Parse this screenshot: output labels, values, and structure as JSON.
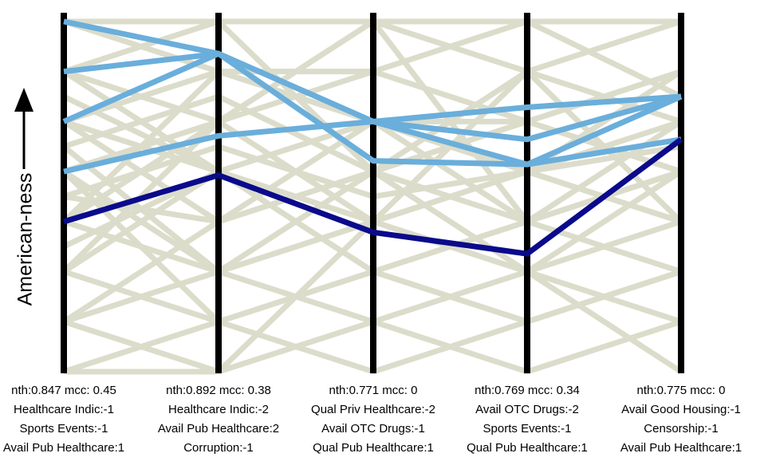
{
  "chart_data": {
    "type": "parallel-coordinates",
    "ylabel": "American-ness",
    "ylabel_arrow": "up-arrow",
    "axes": [
      {
        "stat": "nth:0.847 mcc: 0.45",
        "rules": [
          "Healthcare Indic:-1",
          "Sports Events:-1",
          "Avail Pub Healthcare:1"
        ]
      },
      {
        "stat": "nth:0.892 mcc: 0.38",
        "rules": [
          "Healthcare Indic:-2",
          "Avail Pub Healthcare:2",
          "Corruption:-1"
        ]
      },
      {
        "stat": "nth:0.771 mcc: 0",
        "rules": [
          "Qual Priv Healthcare:-2",
          "Avail OTC Drugs:-1",
          "Qual Pub Healthcare:1"
        ]
      },
      {
        "stat": "nth:0.769 mcc: 0.34",
        "rules": [
          "Avail OTC Drugs:-2",
          "Sports Events:-1",
          "Qual Pub Healthcare:1"
        ]
      },
      {
        "stat": "nth:0.775 mcc: 0",
        "rules": [
          "Avail Good Housing:-1",
          "Censorship:-1",
          "Avail Pub Healthcare:1"
        ]
      }
    ],
    "y_range": [
      0,
      1
    ],
    "highlight_series": [
      {
        "color": "#0a0a8c",
        "values": [
          0.42,
          0.55,
          0.39,
          0.33,
          0.65
        ]
      },
      {
        "color": "#6aaedb",
        "values": [
          0.56,
          0.66,
          0.7,
          0.58,
          0.77
        ]
      },
      {
        "color": "#6aaedb",
        "values": [
          0.7,
          0.89,
          0.7,
          0.65,
          0.77
        ]
      },
      {
        "color": "#6aaedb",
        "values": [
          0.84,
          0.89,
          0.59,
          0.58,
          0.65
        ]
      },
      {
        "color": "#6aaedb",
        "values": [
          0.98,
          0.89,
          0.7,
          0.74,
          0.77
        ]
      }
    ],
    "background_series": [
      {
        "values": [
          0.98,
          0.98,
          0.98,
          0.98,
          0.98
        ]
      },
      {
        "values": [
          0.98,
          0.84,
          0.7,
          0.56,
          0.42
        ]
      },
      {
        "values": [
          0.84,
          0.7,
          0.98,
          0.42,
          0.56
        ]
      },
      {
        "values": [
          0.84,
          0.98,
          0.56,
          0.7,
          0.84
        ]
      },
      {
        "values": [
          0.77,
          0.56,
          0.42,
          0.84,
          0.7
        ]
      },
      {
        "values": [
          0.7,
          0.84,
          0.84,
          0.98,
          0.77
        ]
      },
      {
        "values": [
          0.7,
          0.42,
          0.7,
          0.56,
          0.84
        ]
      },
      {
        "values": [
          0.63,
          0.77,
          0.56,
          0.42,
          0.56
        ]
      },
      {
        "values": [
          0.63,
          0.28,
          0.42,
          0.28,
          0.42
        ]
      },
      {
        "values": [
          0.56,
          0.7,
          0.84,
          0.7,
          0.56
        ]
      },
      {
        "values": [
          0.56,
          0.14,
          0.28,
          0.14,
          0.28
        ]
      },
      {
        "values": [
          0.49,
          0.63,
          0.49,
          0.56,
          0.63
        ]
      },
      {
        "values": [
          0.49,
          0.42,
          0.56,
          0.84,
          0.42
        ]
      },
      {
        "values": [
          0.42,
          0.84,
          0.7,
          0.42,
          0.28
        ]
      },
      {
        "values": [
          0.42,
          0.28,
          0.14,
          0.28,
          0.56
        ]
      },
      {
        "values": [
          0.35,
          0.56,
          0.28,
          0.42,
          0.7
        ]
      },
      {
        "values": [
          0.28,
          0.7,
          0.42,
          0.56,
          0.42
        ]
      },
      {
        "values": [
          0.28,
          0.14,
          0.0,
          0.14,
          0.28
        ]
      },
      {
        "values": [
          0.28,
          0.56,
          0.7,
          0.7,
          0.84
        ]
      },
      {
        "values": [
          0.14,
          0.42,
          0.56,
          0.28,
          0.14
        ]
      },
      {
        "values": [
          0.14,
          0.0,
          0.14,
          0.0,
          0.14
        ]
      },
      {
        "values": [
          0.14,
          0.28,
          0.42,
          0.56,
          0.42
        ]
      },
      {
        "values": [
          0.0,
          0.14,
          0.28,
          0.42,
          0.56
        ]
      },
      {
        "values": [
          0.0,
          0.0,
          0.42,
          0.28,
          0.0
        ]
      },
      {
        "values": [
          0.56,
          0.28,
          0.56,
          0.7,
          0.56
        ]
      },
      {
        "values": [
          0.84,
          0.56,
          0.42,
          0.56,
          0.7
        ]
      },
      {
        "values": [
          0.42,
          0.7,
          0.98,
          0.84,
          0.98
        ]
      },
      {
        "values": [
          0.7,
          0.56,
          0.28,
          0.14,
          0.28
        ]
      }
    ],
    "background_color": "#dcdccb"
  }
}
